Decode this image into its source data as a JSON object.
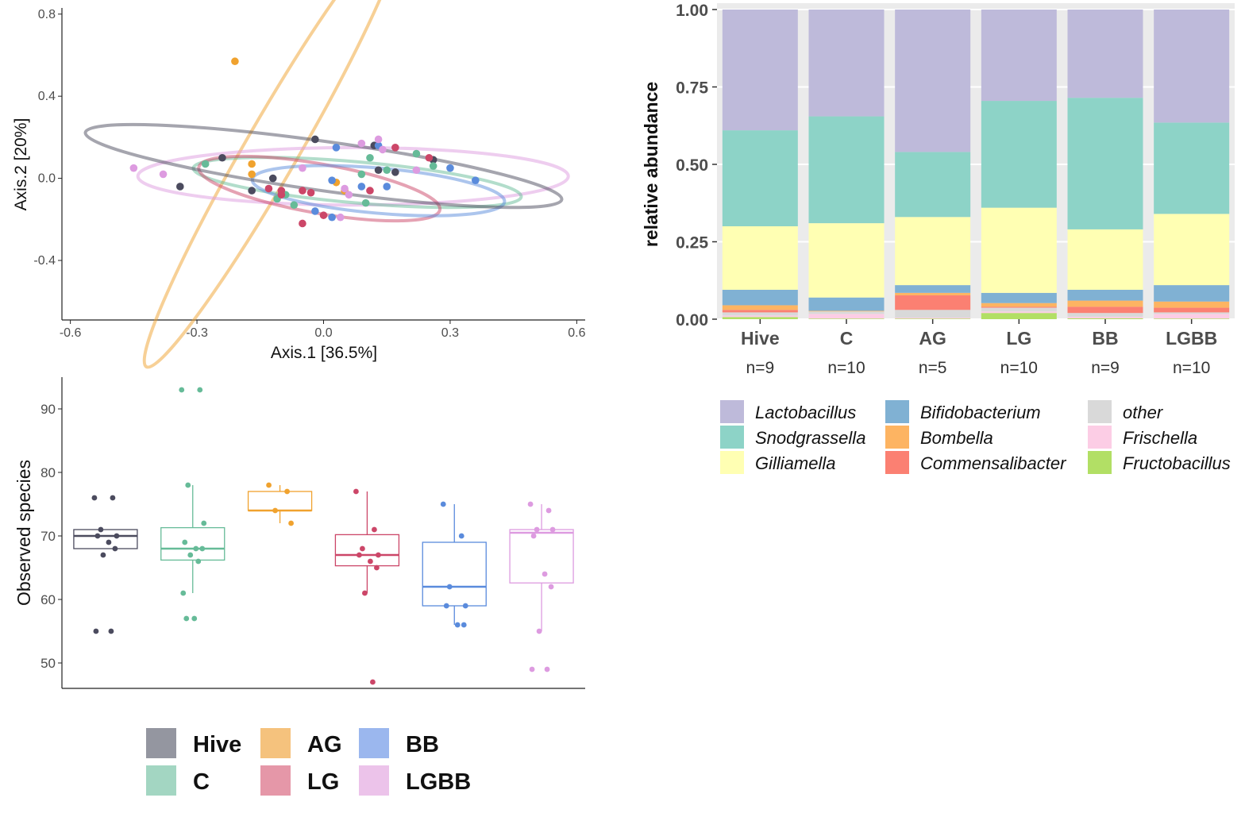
{
  "group_colors": {
    "Hive": "#4b4b5e",
    "C": "#66bb98",
    "AG": "#f0a22e",
    "LG": "#cc4668",
    "BB": "#5a8bdc",
    "LGBB": "#dd9be0"
  },
  "group_legend": {
    "items": [
      {
        "label": "Hive",
        "color": "#9496a0"
      },
      {
        "label": "AG",
        "color": "#f5c27d"
      },
      {
        "label": "BB",
        "color": "#9bb7ee"
      },
      {
        "label": "C",
        "color": "#a3d6c2"
      },
      {
        "label": "LG",
        "color": "#e597a8"
      },
      {
        "label": "LGBB",
        "color": "#ecc3ea"
      }
    ]
  },
  "chart_data": [
    {
      "type": "scatter",
      "xlabel": "Axis.1   [36.5%]",
      "ylabel": "Axis.2   [20%]",
      "xlim": [
        -0.62,
        0.62
      ],
      "ylim": [
        -0.69,
        0.83
      ],
      "xticks": [
        -0.6,
        -0.3,
        0.0,
        0.3,
        0.6
      ],
      "xtick_labels": [
        "-0.6",
        "-0.3",
        "0.0",
        "0.3",
        "0.6"
      ],
      "yticks": [
        -0.4,
        0.0,
        0.4,
        0.8
      ],
      "ytick_labels": [
        "-0.4",
        "0.0",
        "0.4",
        "0.8"
      ],
      "ellipses": [
        {
          "group": "AG",
          "cx": -0.12,
          "cy": 0.15,
          "rx": 0.6,
          "ry": 0.13,
          "angle": -60
        },
        {
          "group": "LGBB",
          "cx": 0.07,
          "cy": 0.01,
          "rx": 0.51,
          "ry": 0.14,
          "angle": 0
        },
        {
          "group": "C",
          "cx": 0.08,
          "cy": -0.02,
          "rx": 0.39,
          "ry": 0.1,
          "angle": 5
        },
        {
          "group": "LG",
          "cx": -0.01,
          "cy": -0.05,
          "rx": 0.29,
          "ry": 0.12,
          "angle": 10
        },
        {
          "group": "BB",
          "cx": 0.13,
          "cy": -0.06,
          "rx": 0.3,
          "ry": 0.11,
          "angle": 5
        },
        {
          "group": "Hive",
          "cx": 0.0,
          "cy": 0.06,
          "rx": 0.57,
          "ry": 0.12,
          "angle": 8
        }
      ],
      "series": [
        {
          "name": "Hive",
          "points": [
            [
              -0.34,
              -0.04
            ],
            [
              -0.24,
              0.1
            ],
            [
              -0.17,
              -0.06
            ],
            [
              -0.12,
              0.0
            ],
            [
              -0.02,
              0.19
            ],
            [
              0.13,
              0.04
            ],
            [
              0.17,
              0.03
            ],
            [
              0.26,
              0.09
            ],
            [
              0.12,
              0.16
            ]
          ]
        },
        {
          "name": "C",
          "points": [
            [
              -0.28,
              0.07
            ],
            [
              -0.11,
              -0.1
            ],
            [
              -0.07,
              -0.13
            ],
            [
              0.1,
              -0.12
            ],
            [
              0.15,
              0.04
            ],
            [
              0.22,
              0.12
            ],
            [
              0.26,
              0.06
            ],
            [
              0.09,
              0.02
            ],
            [
              -0.09,
              -0.08
            ],
            [
              0.11,
              0.1
            ]
          ]
        },
        {
          "name": "AG",
          "points": [
            [
              -0.21,
              0.57
            ],
            [
              -0.17,
              0.07
            ],
            [
              -0.17,
              0.02
            ],
            [
              0.03,
              -0.02
            ],
            [
              0.05,
              -0.06
            ]
          ]
        },
        {
          "name": "LG",
          "points": [
            [
              -0.13,
              -0.05
            ],
            [
              -0.1,
              -0.08
            ],
            [
              -0.05,
              -0.06
            ],
            [
              -0.03,
              -0.07
            ],
            [
              0.0,
              -0.18
            ],
            [
              -0.05,
              -0.22
            ],
            [
              0.11,
              -0.06
            ],
            [
              0.25,
              0.1
            ],
            [
              -0.1,
              -0.06
            ],
            [
              0.17,
              0.15
            ]
          ]
        },
        {
          "name": "BB",
          "points": [
            [
              0.03,
              0.15
            ],
            [
              -0.02,
              -0.16
            ],
            [
              0.02,
              -0.19
            ],
            [
              0.09,
              -0.04
            ],
            [
              0.15,
              -0.04
            ],
            [
              0.3,
              0.05
            ],
            [
              0.36,
              -0.01
            ],
            [
              0.02,
              -0.01
            ],
            [
              0.13,
              0.16
            ]
          ]
        },
        {
          "name": "LGBB",
          "points": [
            [
              -0.45,
              0.05
            ],
            [
              -0.38,
              0.02
            ],
            [
              -0.05,
              0.05
            ],
            [
              0.04,
              -0.19
            ],
            [
              0.22,
              0.04
            ],
            [
              0.05,
              -0.05
            ],
            [
              0.09,
              0.17
            ],
            [
              0.14,
              0.14
            ],
            [
              0.06,
              -0.08
            ],
            [
              0.13,
              0.19
            ]
          ]
        }
      ]
    },
    {
      "type": "bar",
      "stacked": true,
      "ylabel": "relative abundance",
      "ylim": [
        0,
        1
      ],
      "yticks": [
        0,
        0.25,
        0.5,
        0.75,
        1.0
      ],
      "ytick_labels": [
        "0.00",
        "0.25",
        "0.50",
        "0.75",
        "1.00"
      ],
      "categories": [
        "Hive",
        "C",
        "AG",
        "LG",
        "BB",
        "LGBB"
      ],
      "n_labels": [
        "n=9",
        "n=10",
        "n=5",
        "n=10",
        "n=9",
        "n=10"
      ],
      "series": [
        {
          "name": "Fructobacillus",
          "color": "#b2df65",
          "values": [
            0.007,
            0.002,
            0.002,
            0.02,
            0.003,
            0.002
          ]
        },
        {
          "name": "Frischella",
          "color": "#fccde5",
          "values": [
            0.005,
            0.015,
            0.003,
            0.005,
            0.005,
            0.015
          ]
        },
        {
          "name": "other",
          "color": "#d9d9d9",
          "values": [
            0.01,
            0.008,
            0.025,
            0.012,
            0.012,
            0.005
          ]
        },
        {
          "name": "Commensalibacter",
          "color": "#fb8072",
          "values": [
            0.008,
            0.0,
            0.047,
            0.003,
            0.02,
            0.015
          ]
        },
        {
          "name": "Bombella",
          "color": "#fdb462",
          "values": [
            0.015,
            0.002,
            0.008,
            0.012,
            0.02,
            0.02
          ]
        },
        {
          "name": "Bifidobacterium",
          "color": "#80b1d3",
          "values": [
            0.05,
            0.043,
            0.025,
            0.033,
            0.035,
            0.053
          ]
        },
        {
          "name": "Gilliamella",
          "color": "#ffffb3",
          "values": [
            0.205,
            0.24,
            0.22,
            0.275,
            0.195,
            0.23
          ]
        },
        {
          "name": "Snodgrassella",
          "color": "#8dd3c7",
          "values": [
            0.31,
            0.345,
            0.21,
            0.345,
            0.425,
            0.295
          ]
        },
        {
          "name": "Lactobacillus",
          "color": "#bebada",
          "values": [
            0.39,
            0.345,
            0.46,
            0.295,
            0.285,
            0.365
          ]
        }
      ]
    },
    {
      "type": "box",
      "ylabel": "Observed species",
      "ylim": [
        46,
        95
      ],
      "yticks": [
        50,
        60,
        70,
        80,
        90
      ],
      "ytick_labels": [
        "50",
        "60",
        "70",
        "80",
        "90"
      ],
      "boxes": [
        {
          "group": "Hive",
          "q1": 68,
          "median": 70,
          "q3": 71,
          "whisker_low": 68,
          "whisker_high": 71,
          "points": [
            76,
            76,
            71,
            70,
            70,
            69,
            68,
            67,
            55,
            55
          ]
        },
        {
          "group": "C",
          "q1": 66.2,
          "median": 68,
          "q3": 71.3,
          "whisker_low": 61,
          "whisker_high": 78,
          "points": [
            93,
            93,
            78,
            72,
            69,
            68,
            68,
            67,
            66,
            61,
            57,
            57
          ]
        },
        {
          "group": "AG",
          "q1": 74,
          "median": 74,
          "q3": 77,
          "whisker_low": 72,
          "whisker_high": 78,
          "points": [
            78,
            77,
            74,
            72
          ]
        },
        {
          "group": "LG",
          "q1": 65.3,
          "median": 67,
          "q3": 70.2,
          "whisker_low": 61,
          "whisker_high": 77,
          "points": [
            77,
            71,
            68,
            67,
            67,
            66,
            65,
            61,
            47
          ]
        },
        {
          "group": "BB",
          "q1": 59,
          "median": 62,
          "q3": 69,
          "whisker_low": 56,
          "whisker_high": 75,
          "points": [
            75,
            70,
            62,
            59,
            59,
            56,
            56
          ]
        },
        {
          "group": "LGBB",
          "q1": 62.6,
          "median": 70.5,
          "q3": 71,
          "whisker_low": 55,
          "whisker_high": 75,
          "points": [
            75,
            74,
            71,
            71,
            70,
            64,
            62,
            55,
            49,
            49
          ]
        }
      ]
    }
  ],
  "taxa_legend": [
    {
      "label": "Lactobacillus",
      "color": "#bebada"
    },
    {
      "label": "Snodgrassella",
      "color": "#8dd3c7"
    },
    {
      "label": "Gilliamella",
      "color": "#ffffb3"
    },
    {
      "label": "Bifidobacterium",
      "color": "#80b1d3"
    },
    {
      "label": "Bombella",
      "color": "#fdb462"
    },
    {
      "label": "Commensalibacter",
      "color": "#fb8072"
    },
    {
      "label": "other",
      "color": "#d9d9d9"
    },
    {
      "label": "Frischella",
      "color": "#fccde5"
    },
    {
      "label": "Fructobacillus",
      "color": "#b2df65"
    }
  ]
}
